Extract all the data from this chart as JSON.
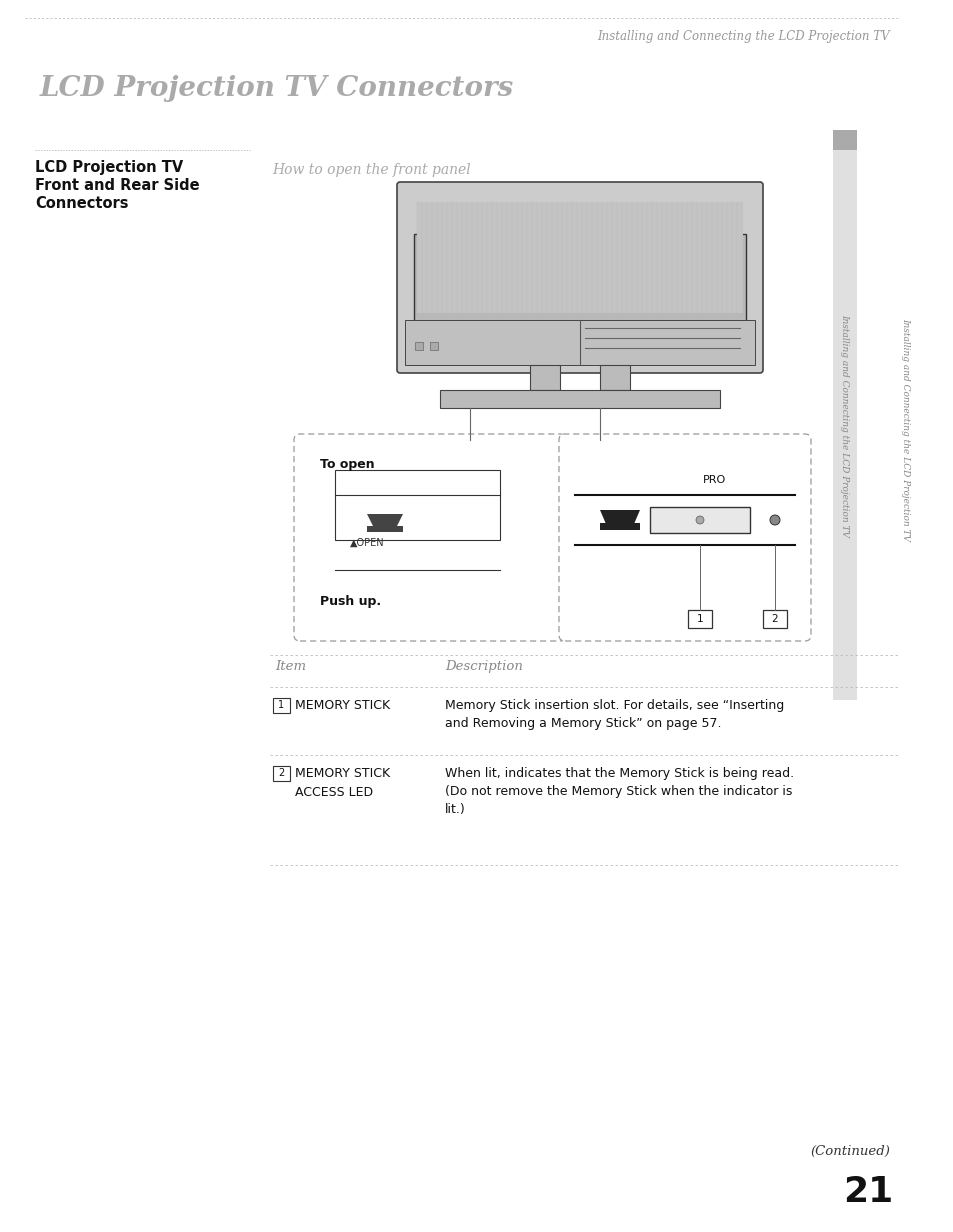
{
  "bg_color": "#ffffff",
  "page_width": 9.54,
  "page_height": 12.32,
  "top_rule_color": "#b0b0b0",
  "header_text": "Installing and Connecting the LCD Projection TV",
  "header_color": "#999999",
  "section_title": "LCD Projection TV Connectors",
  "section_title_color": "#aaaaaa",
  "section_title_size": 20,
  "subsection_rule_color": "#aaaaaa",
  "subsection_bold_line1": "LCD Projection TV",
  "subsection_bold_line2": "Front and Rear Side",
  "subsection_bold_line3": "Connectors",
  "subsection_bold_color": "#111111",
  "subsection_bold_size": 10.5,
  "how_to_text": "How to open the front panel",
  "how_to_color": "#aaaaaa",
  "how_to_size": 10,
  "sidebar_text": "Installing and Connecting the LCD Projection TV",
  "sidebar_color": "#888888",
  "sidebar_bg": "#e8e8e8",
  "to_open_text": "To open",
  "push_up_text": "Push up.",
  "open_label": "▲OPEN",
  "pro_label": "PRO",
  "table_header_item": "Item",
  "table_header_desc": "Description",
  "table_header_color": "#888888",
  "table_row1_item": "MEMORY STICK",
  "table_row1_desc": "Memory Stick insertion slot. For details, see “Inserting\nand Removing a Memory Stick” on page 57.",
  "table_row2_item": "MEMORY STICK\nACCESS LED",
  "table_row2_desc": "When lit, indicates that the Memory Stick is being read.\n(Do not remove the Memory Stick when the indicator is\nlit.)",
  "page_number": "21",
  "continued_text": "(Continued)",
  "line_color": "#bbbbbb",
  "tv_body_color": "#d0d0d0",
  "tv_screen_color": "#c0c0c0",
  "tv_dark": "#555555",
  "box_border_color": "#aaaaaa"
}
